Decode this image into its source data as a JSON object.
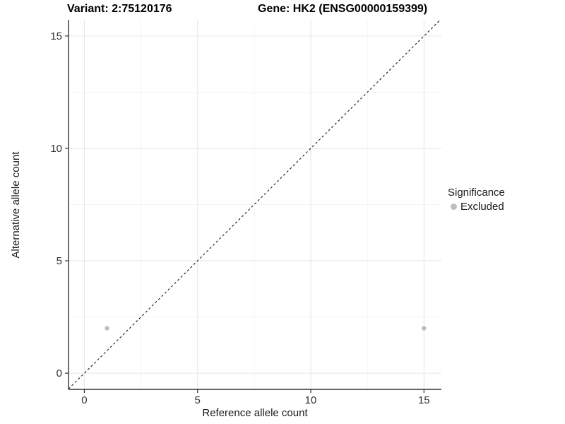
{
  "header": {
    "variant_title": "Variant: 2:75120176",
    "gene_title": "Gene: HK2 (ENSG00000159399)"
  },
  "chart_data": {
    "type": "scatter",
    "title": "Variant: 2:75120176   Gene: HK2 (ENSG00000159399)",
    "xlabel": "Reference allele count",
    "ylabel": "Alternative allele count",
    "xlim": [
      -0.7,
      15.77
    ],
    "ylim": [
      -0.72,
      15.72
    ],
    "xticks": [
      0,
      5,
      10,
      15
    ],
    "yticks": [
      0,
      5,
      10,
      15
    ],
    "xticks_minor": [
      2.5,
      7.5,
      12.5
    ],
    "yticks_minor": [
      2.5,
      7.5,
      12.5
    ],
    "grid": "major+minor",
    "legend_position": "right",
    "series": [
      {
        "name": "Excluded",
        "color": "#bebebe",
        "points": [
          {
            "x": 1,
            "y": 2
          },
          {
            "x": 15,
            "y": 2
          }
        ]
      }
    ],
    "reference_line": {
      "kind": "identity",
      "slope": 1,
      "intercept": 0,
      "style": "dashed",
      "color": "#1a1a1a"
    },
    "legend": {
      "title": "Significance",
      "items": [
        {
          "label": "Excluded",
          "color": "#bebebe"
        }
      ]
    }
  },
  "colors": {
    "background": "#ffffff",
    "grid_major": "#e6e6e6",
    "grid_minor": "#f2f2f2",
    "axis_line": "#333333",
    "tick_label": "#333333",
    "axis_title": "#1a1a1a",
    "title_text": "#000000",
    "point": "#bebebe"
  }
}
